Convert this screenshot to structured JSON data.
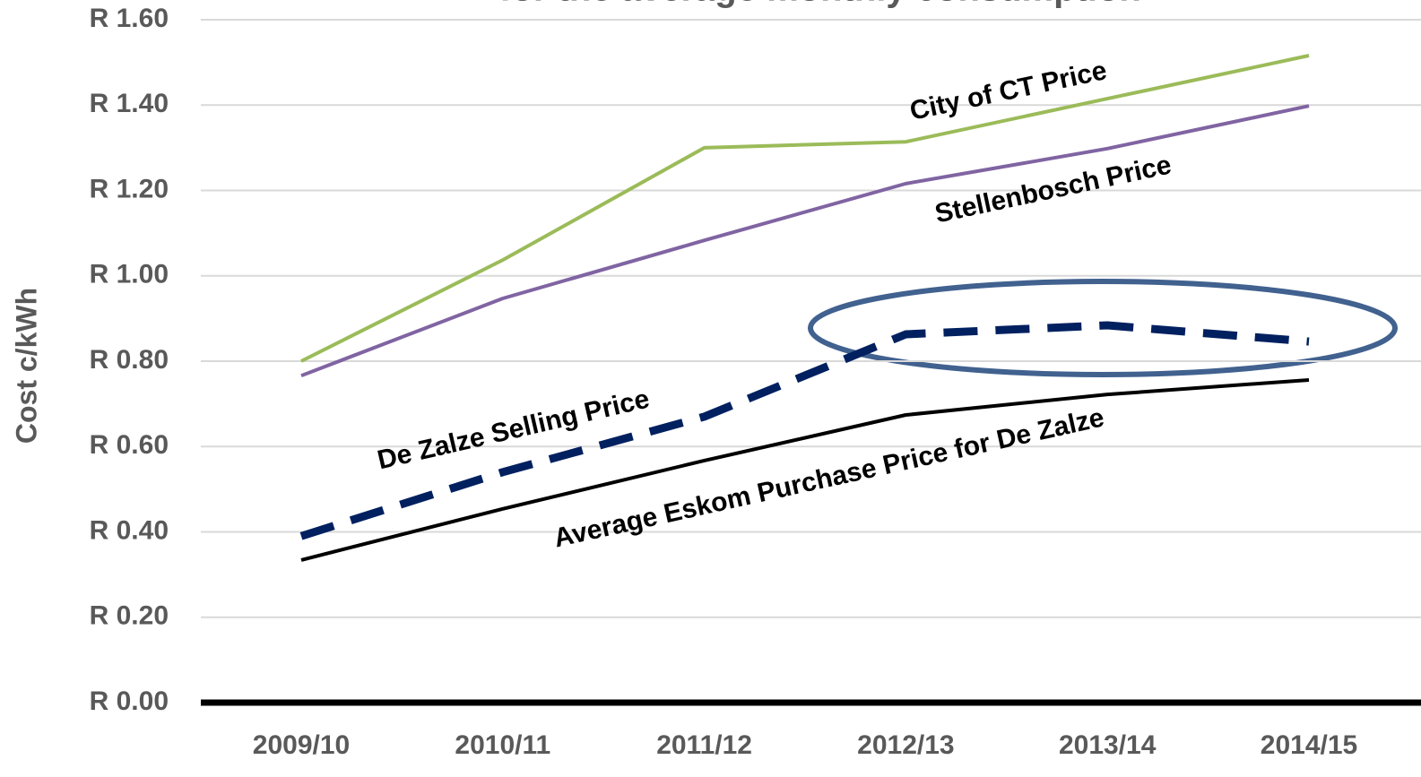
{
  "chart_data": {
    "type": "line",
    "title": "for the average monthly consumption",
    "y_label": "Cost c/kWh",
    "categories": [
      "2009/10",
      "2010/11",
      "2011/12",
      "2012/13",
      "2013/14",
      "2014/15"
    ],
    "series": [
      {
        "name": "City of CT Price",
        "color": "#9bbb59",
        "values": [
          0.8,
          1.037,
          1.3,
          1.314,
          1.415,
          1.516
        ]
      },
      {
        "name": "Stellenbosch Price",
        "color": "#8064a2",
        "values": [
          0.766,
          0.947,
          1.083,
          1.216,
          1.298,
          1.398
        ]
      },
      {
        "name": "De Zalze Selling Price",
        "color": "#002060",
        "dashed": true,
        "values": [
          0.39,
          0.54,
          0.67,
          0.863,
          0.884,
          0.846
        ]
      },
      {
        "name": "Average Eskom Purchase Price for De Zalze",
        "color": "#000000",
        "values": [
          0.334,
          0.454,
          0.567,
          0.674,
          0.722,
          0.756
        ]
      }
    ],
    "ylim": [
      0,
      1.6
    ],
    "yticks": [
      {
        "value": 0,
        "label": "R 0.00"
      },
      {
        "value": 0.2,
        "label": "R 0.20"
      },
      {
        "value": 0.4,
        "label": "R 0.40"
      },
      {
        "value": 0.6,
        "label": "R 0.60"
      },
      {
        "value": 0.8,
        "label": "R 0.80"
      },
      {
        "value": 1.0,
        "label": "R 1.00"
      },
      {
        "value": 1.2,
        "label": "R 1.20"
      },
      {
        "value": 1.4,
        "label": "R 1.40"
      },
      {
        "value": 1.6,
        "label": "R 1.60"
      }
    ],
    "grid": true
  }
}
